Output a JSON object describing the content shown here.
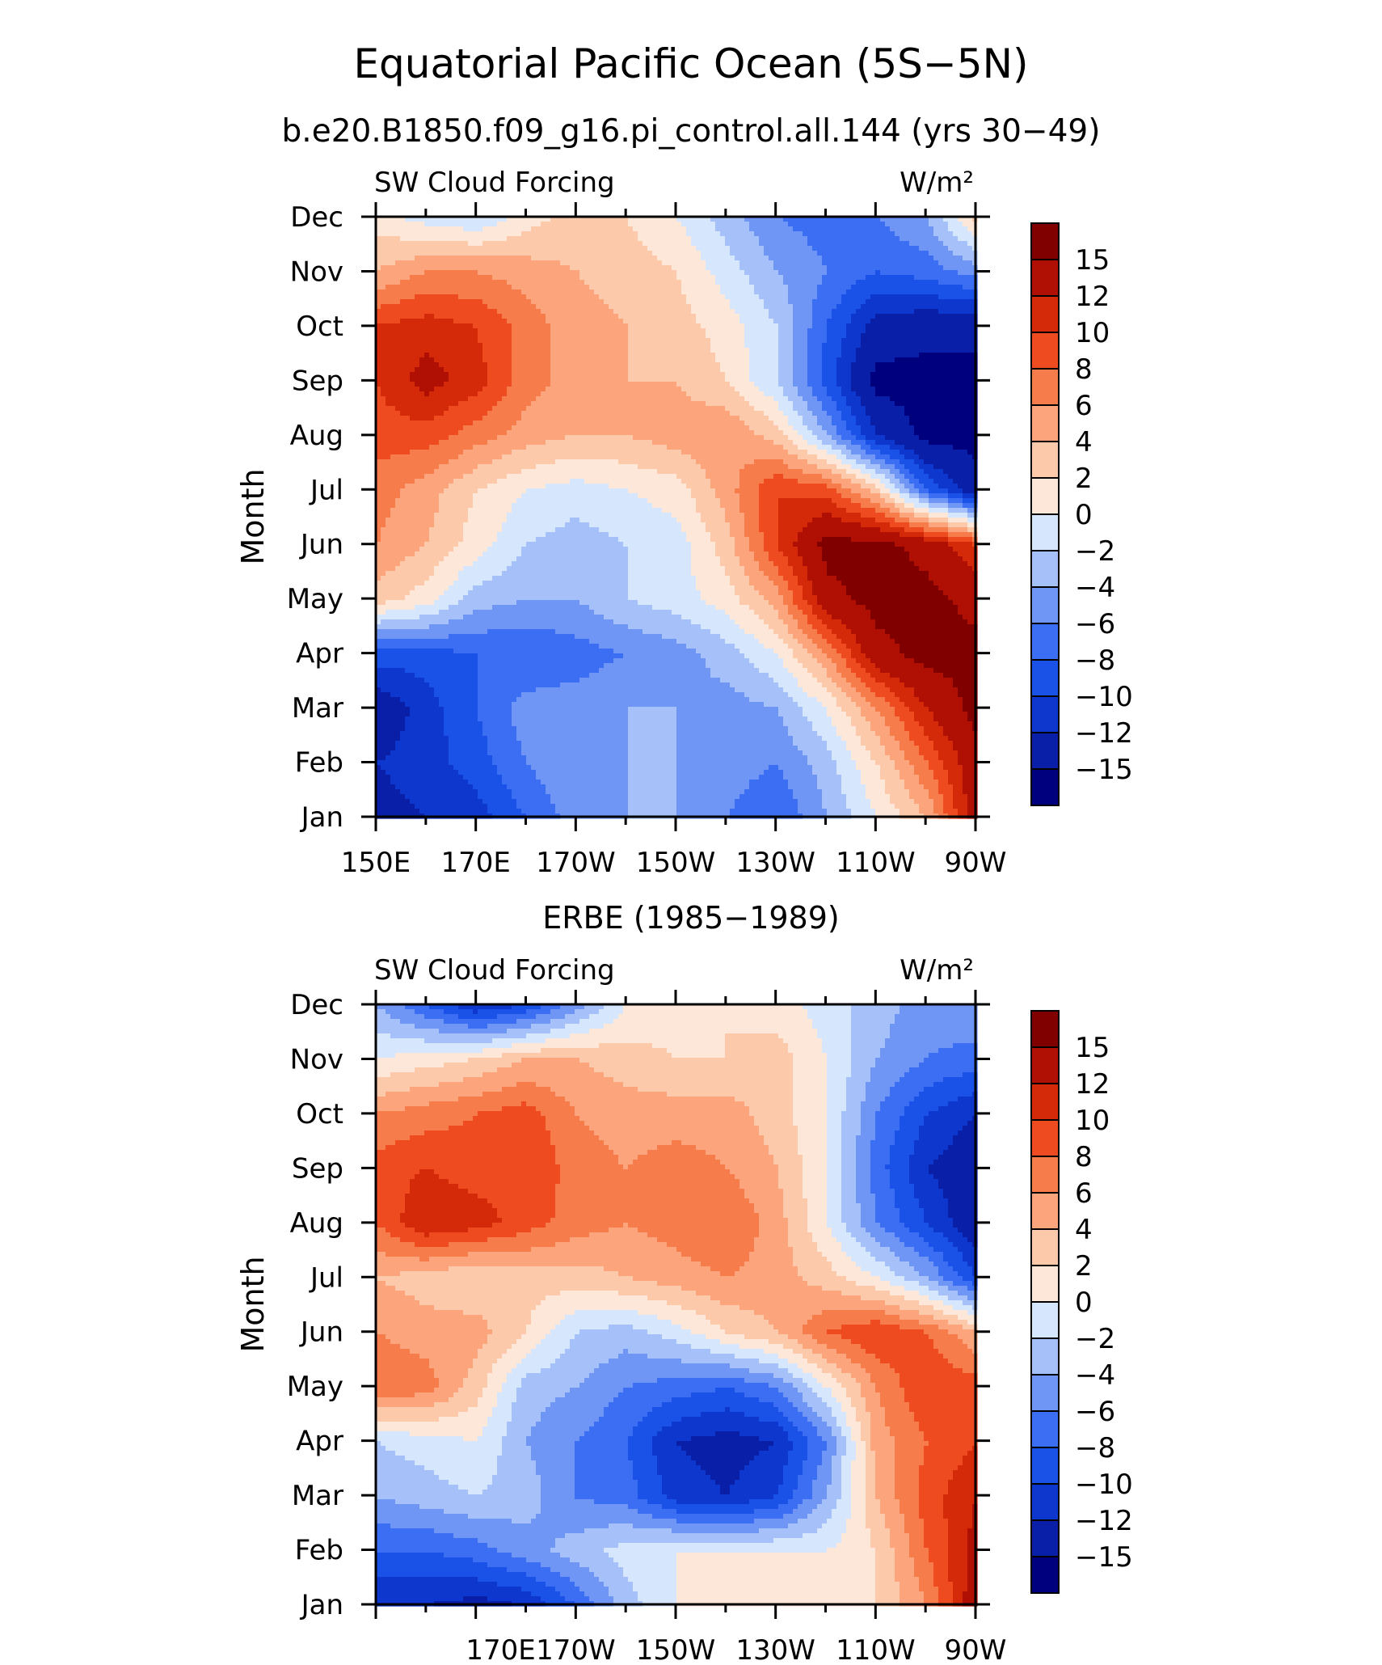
{
  "figure": {
    "title": "Equatorial Pacific Ocean (5S−5N)",
    "subtitle": "b.e20.B1850.f09_g16.pi_control.all.144 (yrs 30−49)"
  },
  "colorbar": {
    "levels": [
      -15,
      -12,
      -10,
      -8,
      -6,
      -4,
      -2,
      0,
      2,
      4,
      6,
      8,
      10,
      12,
      15
    ],
    "tick_labels": [
      "−15",
      "−12",
      "−10",
      "−8",
      "−6",
      "−4",
      "−2",
      "0",
      "2",
      "4",
      "6",
      "8",
      "10",
      "12",
      "15"
    ],
    "colors": [
      "#00007f",
      "#0a1fa8",
      "#0d37cd",
      "#1a52e8",
      "#3b6ef2",
      "#6f96f5",
      "#a6c0f9",
      "#d6e6fc",
      "#fde7d8",
      "#fcc9aa",
      "#fca57d",
      "#f77c4b",
      "#ee4b21",
      "#d42a09",
      "#b01004",
      "#800000"
    ]
  },
  "chart_data": [
    {
      "type": "heatmap",
      "title": "",
      "panel_title": "",
      "left_label": "SW Cloud Forcing",
      "right_label": "W/m²",
      "ylabel": "Month",
      "y_categories": [
        "Jan",
        "Feb",
        "Mar",
        "Apr",
        "May",
        "Jun",
        "Jul",
        "Aug",
        "Sep",
        "Oct",
        "Nov",
        "Dec"
      ],
      "x_tick_labels": [
        "150E",
        "170E",
        "170W",
        "150W",
        "130W",
        "110W",
        "90W"
      ],
      "xlim": [
        150,
        270
      ],
      "x": [
        150,
        160,
        170,
        180,
        190,
        200,
        210,
        220,
        230,
        240,
        250,
        260,
        270
      ],
      "z": [
        [
          -13,
          -12,
          -11,
          -8,
          -5,
          -4,
          -4,
          -6,
          -8,
          -4,
          0,
          4,
          14
        ],
        [
          -12,
          -11,
          -9,
          -6,
          -4,
          -4,
          -4,
          -5,
          -6,
          -3,
          2,
          8,
          14
        ],
        [
          -14,
          -11,
          -8,
          -5,
          -5,
          -4,
          -4,
          -5,
          -4,
          0,
          6,
          12,
          16
        ],
        [
          -9,
          -9,
          -8,
          -8,
          -7,
          -6,
          -5,
          -3,
          0,
          6,
          14,
          16,
          16
        ],
        [
          3,
          1,
          -3,
          -4,
          -4,
          -2,
          -1,
          1,
          5,
          14,
          16,
          16,
          14
        ],
        [
          6,
          4,
          1,
          -2,
          -3,
          -2,
          -1,
          3,
          10,
          16,
          16,
          14,
          10
        ],
        [
          7,
          5,
          2,
          0,
          -1,
          0,
          1,
          5,
          10,
          9,
          3,
          -8,
          -14
        ],
        [
          9,
          9,
          7,
          5,
          4,
          4,
          5,
          6,
          3,
          -4,
          -12,
          -16,
          -16
        ],
        [
          10,
          13,
          11,
          7,
          5,
          4,
          4,
          2,
          -2,
          -9,
          -16,
          -16,
          -16
        ],
        [
          10,
          11,
          10,
          7,
          5,
          4,
          3,
          1,
          -2,
          -8,
          -13,
          -14,
          -14
        ],
        [
          4,
          6,
          6,
          5,
          4,
          3,
          2,
          -1,
          -4,
          -6,
          -8,
          -7,
          -5
        ],
        [
          1,
          -1,
          -2,
          1,
          3,
          2,
          0,
          -3,
          -6,
          -7,
          -6,
          -4,
          3
        ]
      ]
    },
    {
      "type": "heatmap",
      "title": "ERBE (1985−1989)",
      "panel_title": "ERBE (1985−1989)",
      "left_label": "SW Cloud Forcing",
      "right_label": "W/m²",
      "ylabel": "Month",
      "y_categories": [
        "Jan",
        "Feb",
        "Mar",
        "Apr",
        "May",
        "Jun",
        "Jul",
        "Aug",
        "Sep",
        "Oct",
        "Nov",
        "Dec"
      ],
      "x_tick_labels": [
        "170E",
        "170W",
        "150W",
        "130W",
        "110W",
        "90W"
      ],
      "xlim": [
        150,
        270
      ],
      "x": [
        150,
        160,
        170,
        180,
        190,
        200,
        210,
        220,
        230,
        240,
        250,
        260,
        270
      ],
      "z": [
        [
          -12,
          -12,
          -13,
          -12,
          -8,
          -3,
          0,
          1,
          1,
          1,
          2,
          6,
          14
        ],
        [
          -8,
          -8,
          -7,
          -5,
          -3,
          -1,
          0,
          0,
          0,
          0,
          2,
          8,
          13
        ],
        [
          -4,
          -3,
          -2,
          -3,
          -6,
          -7,
          -11,
          -12,
          -10,
          -4,
          4,
          9,
          12
        ],
        [
          -2,
          -1,
          0,
          -4,
          -6,
          -8,
          -12,
          -13,
          -12,
          -6,
          5,
          8,
          10
        ],
        [
          8,
          7,
          3,
          -3,
          -4,
          -6,
          -7,
          -8,
          -6,
          0,
          6,
          10,
          9
        ],
        [
          6,
          5,
          5,
          2,
          -2,
          -3,
          -1,
          2,
          4,
          8,
          10,
          8,
          4
        ],
        [
          4,
          3,
          2,
          3,
          3,
          4,
          5,
          6,
          5,
          3,
          0,
          -4,
          -10
        ],
        [
          8,
          12,
          11,
          9,
          7,
          6,
          7,
          8,
          5,
          0,
          -6,
          -10,
          -14
        ],
        [
          9,
          10,
          9,
          10,
          7,
          6,
          7,
          6,
          4,
          0,
          -7,
          -12,
          -14
        ],
        [
          6,
          7,
          8,
          9,
          6,
          5,
          5,
          5,
          3,
          0,
          -6,
          -10,
          -12
        ],
        [
          0,
          1,
          2,
          4,
          4,
          3,
          2,
          2,
          3,
          0,
          -4,
          -6,
          -7
        ],
        [
          -4,
          -8,
          -12,
          -10,
          -5,
          0,
          1,
          2,
          1,
          -1,
          -3,
          -5,
          -4
        ]
      ]
    }
  ]
}
